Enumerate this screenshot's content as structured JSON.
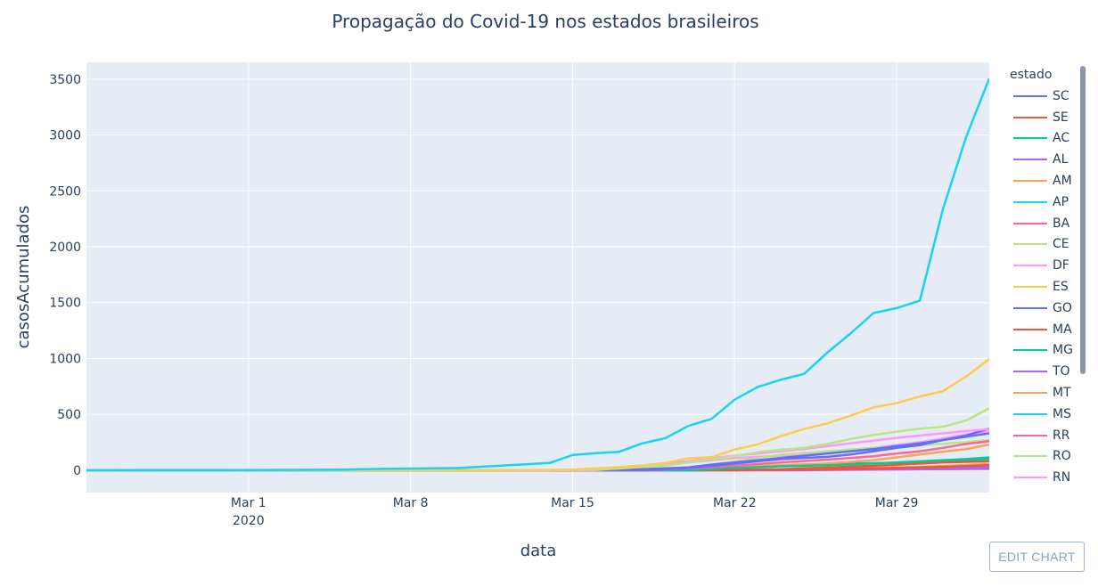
{
  "title": "Propagação do Covid-19 nos estados brasileiros",
  "legend": {
    "title": "estado",
    "items": [
      {
        "label": "SC",
        "color": "#636efa"
      },
      {
        "label": "SE",
        "color": "#EF553B"
      },
      {
        "label": "AC",
        "color": "#00cc96"
      },
      {
        "label": "AL",
        "color": "#ab63fa"
      },
      {
        "label": "AM",
        "color": "#FFA15A"
      },
      {
        "label": "AP",
        "color": "#19d3f3"
      },
      {
        "label": "BA",
        "color": "#FF6692"
      },
      {
        "label": "CE",
        "color": "#B6E880"
      },
      {
        "label": "DF",
        "color": "#FF97FF"
      },
      {
        "label": "ES",
        "color": "#FECB52"
      },
      {
        "label": "GO",
        "color": "#636efa"
      },
      {
        "label": "MA",
        "color": "#EF553B"
      },
      {
        "label": "MG",
        "color": "#00cc96"
      },
      {
        "label": "TO",
        "color": "#ab63fa"
      },
      {
        "label": "MT",
        "color": "#FFA15A"
      },
      {
        "label": "MS",
        "color": "#19d3f3"
      },
      {
        "label": "RR",
        "color": "#FF6692"
      },
      {
        "label": "RO",
        "color": "#B6E880"
      },
      {
        "label": "RN",
        "color": "#FF97FF"
      }
    ]
  },
  "edit_button": "EDIT CHART",
  "chart_data": {
    "type": "line",
    "title": "Propagação do Covid-19 nos estados brasileiros",
    "xlabel": "data",
    "ylabel": "casosAcumulados",
    "x_range": [
      "2020-02-23",
      "2020-04-02"
    ],
    "ylim": [
      -200,
      3650
    ],
    "x_ticks": [
      {
        "date": "2020-03-01",
        "label": "Mar 1",
        "sublabel": "2020"
      },
      {
        "date": "2020-03-08",
        "label": "Mar 8",
        "sublabel": ""
      },
      {
        "date": "2020-03-15",
        "label": "Mar 15",
        "sublabel": ""
      },
      {
        "date": "2020-03-22",
        "label": "Mar 22",
        "sublabel": ""
      },
      {
        "date": "2020-03-29",
        "label": "Mar 29",
        "sublabel": ""
      }
    ],
    "y_ticks": [
      0,
      500,
      1000,
      1500,
      2000,
      2500,
      3000,
      3500
    ],
    "grid": true,
    "legend_position": "right",
    "series": [
      {
        "name": "MS",
        "color": "#19d3f3",
        "points": [
          [
            "2020-02-23",
            0
          ],
          [
            "2020-02-26",
            1
          ],
          [
            "2020-02-29",
            2
          ],
          [
            "2020-03-03",
            3
          ],
          [
            "2020-03-05",
            6
          ],
          [
            "2020-03-07",
            13
          ],
          [
            "2020-03-10",
            19
          ],
          [
            "2020-03-12",
            42
          ],
          [
            "2020-03-14",
            65
          ],
          [
            "2020-03-15",
            136
          ],
          [
            "2020-03-16",
            152
          ],
          [
            "2020-03-17",
            164
          ],
          [
            "2020-03-18",
            240
          ],
          [
            "2020-03-19",
            286
          ],
          [
            "2020-03-20",
            396
          ],
          [
            "2020-03-21",
            459
          ],
          [
            "2020-03-22",
            631
          ],
          [
            "2020-03-23",
            745
          ],
          [
            "2020-03-24",
            810
          ],
          [
            "2020-03-25",
            862
          ],
          [
            "2020-03-26",
            1052
          ],
          [
            "2020-03-27",
            1223
          ],
          [
            "2020-03-28",
            1406
          ],
          [
            "2020-03-29",
            1451
          ],
          [
            "2020-03-30",
            1517
          ],
          [
            "2020-03-31",
            2339
          ],
          [
            "2020-04-01",
            2981
          ],
          [
            "2020-04-02",
            3506
          ]
        ]
      },
      {
        "name": "ES",
        "color": "#FECB52",
        "points": [
          [
            "2020-02-23",
            0
          ],
          [
            "2020-03-12",
            0
          ],
          [
            "2020-03-15",
            5
          ],
          [
            "2020-03-16",
            18
          ],
          [
            "2020-03-17",
            28
          ],
          [
            "2020-03-18",
            43
          ],
          [
            "2020-03-19",
            65
          ],
          [
            "2020-03-20",
            108
          ],
          [
            "2020-03-21",
            117
          ],
          [
            "2020-03-22",
            186
          ],
          [
            "2020-03-23",
            232
          ],
          [
            "2020-03-24",
            305
          ],
          [
            "2020-03-25",
            368
          ],
          [
            "2020-03-26",
            419
          ],
          [
            "2020-03-27",
            488
          ],
          [
            "2020-03-28",
            562
          ],
          [
            "2020-03-29",
            600
          ],
          [
            "2020-03-30",
            660
          ],
          [
            "2020-03-31",
            708
          ],
          [
            "2020-04-01",
            839
          ],
          [
            "2020-04-02",
            996
          ]
        ]
      },
      {
        "name": "RO",
        "color": "#B6E880",
        "points": [
          [
            "2020-02-23",
            0
          ],
          [
            "2020-03-14",
            0
          ],
          [
            "2020-03-16",
            5
          ],
          [
            "2020-03-17",
            15
          ],
          [
            "2020-03-18",
            30
          ],
          [
            "2020-03-19",
            40
          ],
          [
            "2020-03-20",
            70
          ],
          [
            "2020-03-21",
            100
          ],
          [
            "2020-03-22",
            125
          ],
          [
            "2020-03-23",
            160
          ],
          [
            "2020-03-24",
            185
          ],
          [
            "2020-03-25",
            200
          ],
          [
            "2020-03-26",
            235
          ],
          [
            "2020-03-27",
            280
          ],
          [
            "2020-03-28",
            315
          ],
          [
            "2020-03-29",
            345
          ],
          [
            "2020-03-30",
            372
          ],
          [
            "2020-03-31",
            390
          ],
          [
            "2020-04-01",
            445
          ],
          [
            "2020-04-02",
            555
          ]
        ]
      },
      {
        "name": "RN",
        "color": "#FF97FF",
        "points": [
          [
            "2020-02-23",
            0
          ],
          [
            "2020-03-16",
            0
          ],
          [
            "2020-03-17",
            20
          ],
          [
            "2020-03-18",
            40
          ],
          [
            "2020-03-19",
            60
          ],
          [
            "2020-03-20",
            80
          ],
          [
            "2020-03-21",
            110
          ],
          [
            "2020-03-22",
            130
          ],
          [
            "2020-03-23",
            150
          ],
          [
            "2020-03-24",
            170
          ],
          [
            "2020-03-25",
            190
          ],
          [
            "2020-03-26",
            215
          ],
          [
            "2020-03-27",
            240
          ],
          [
            "2020-03-28",
            265
          ],
          [
            "2020-03-29",
            290
          ],
          [
            "2020-03-30",
            310
          ],
          [
            "2020-03-31",
            330
          ],
          [
            "2020-04-01",
            350
          ],
          [
            "2020-04-02",
            370
          ]
        ]
      },
      {
        "name": "SC",
        "color": "#636efa",
        "points": [
          [
            "2020-02-23",
            0
          ],
          [
            "2020-03-17",
            0
          ],
          [
            "2020-03-18",
            10
          ],
          [
            "2020-03-20",
            25
          ],
          [
            "2020-03-21",
            50
          ],
          [
            "2020-03-22",
            70
          ],
          [
            "2020-03-23",
            90
          ],
          [
            "2020-03-24",
            110
          ],
          [
            "2020-03-25",
            130
          ],
          [
            "2020-03-26",
            150
          ],
          [
            "2020-03-27",
            170
          ],
          [
            "2020-03-28",
            190
          ],
          [
            "2020-03-29",
            215
          ],
          [
            "2020-03-30",
            240
          ],
          [
            "2020-03-31",
            270
          ],
          [
            "2020-04-01",
            300
          ],
          [
            "2020-04-02",
            330
          ]
        ]
      },
      {
        "name": "GO",
        "color": "#636efa",
        "points": [
          [
            "2020-02-23",
            0
          ],
          [
            "2020-03-18",
            0
          ],
          [
            "2020-03-20",
            20
          ],
          [
            "2020-03-22",
            60
          ],
          [
            "2020-03-24",
            100
          ],
          [
            "2020-03-26",
            120
          ],
          [
            "2020-03-27",
            140
          ],
          [
            "2020-03-28",
            170
          ],
          [
            "2020-03-29",
            200
          ],
          [
            "2020-03-30",
            225
          ],
          [
            "2020-03-31",
            270
          ],
          [
            "2020-04-01",
            310
          ],
          [
            "2020-04-02",
            375
          ]
        ]
      },
      {
        "name": "BA",
        "color": "#FF6692",
        "points": [
          [
            "2020-02-23",
            0
          ],
          [
            "2020-03-18",
            0
          ],
          [
            "2020-03-20",
            15
          ],
          [
            "2020-03-22",
            40
          ],
          [
            "2020-03-24",
            70
          ],
          [
            "2020-03-26",
            95
          ],
          [
            "2020-03-28",
            125
          ],
          [
            "2020-03-29",
            150
          ],
          [
            "2020-03-30",
            170
          ],
          [
            "2020-03-31",
            200
          ],
          [
            "2020-04-01",
            235
          ],
          [
            "2020-04-02",
            260
          ]
        ]
      },
      {
        "name": "AC",
        "color": "#00cc96",
        "points": [
          [
            "2020-02-23",
            0
          ],
          [
            "2020-03-20",
            0
          ],
          [
            "2020-03-22",
            20
          ],
          [
            "2020-03-24",
            35
          ],
          [
            "2020-03-26",
            45
          ],
          [
            "2020-03-28",
            60
          ],
          [
            "2020-03-29",
            70
          ],
          [
            "2020-03-30",
            80
          ],
          [
            "2020-03-31",
            90
          ],
          [
            "2020-04-01",
            100
          ],
          [
            "2020-04-02",
            115
          ]
        ]
      },
      {
        "name": "SE",
        "color": "#EF553B",
        "points": [
          [
            "2020-02-23",
            0
          ],
          [
            "2020-03-22",
            0
          ],
          [
            "2020-03-26",
            10
          ],
          [
            "2020-03-29",
            20
          ],
          [
            "2020-03-31",
            30
          ],
          [
            "2020-04-02",
            45
          ]
        ]
      },
      {
        "name": "AL",
        "color": "#ab63fa",
        "points": [
          [
            "2020-02-23",
            0
          ],
          [
            "2020-03-22",
            0
          ],
          [
            "2020-03-26",
            8
          ],
          [
            "2020-03-29",
            15
          ],
          [
            "2020-04-02",
            25
          ]
        ]
      },
      {
        "name": "AM",
        "color": "#FFA15A",
        "points": [
          [
            "2020-02-23",
            0
          ],
          [
            "2020-03-18",
            0
          ],
          [
            "2020-03-22",
            30
          ],
          [
            "2020-03-26",
            60
          ],
          [
            "2020-03-28",
            90
          ],
          [
            "2020-03-30",
            140
          ],
          [
            "2020-04-01",
            190
          ],
          [
            "2020-04-02",
            230
          ]
        ]
      },
      {
        "name": "CE",
        "color": "#B6E880",
        "points": [
          [
            "2020-02-23",
            0
          ],
          [
            "2020-03-18",
            0
          ],
          [
            "2020-03-20",
            20
          ],
          [
            "2020-03-22",
            80
          ],
          [
            "2020-03-24",
            140
          ],
          [
            "2020-03-26",
            170
          ],
          [
            "2020-03-28",
            200
          ],
          [
            "2020-03-30",
            225
          ],
          [
            "2020-04-01",
            250
          ],
          [
            "2020-04-02",
            270
          ]
        ]
      },
      {
        "name": "DF",
        "color": "#FF97FF",
        "points": [
          [
            "2020-02-23",
            0
          ],
          [
            "2020-03-16",
            0
          ],
          [
            "2020-03-18",
            30
          ],
          [
            "2020-03-20",
            70
          ],
          [
            "2020-03-22",
            110
          ],
          [
            "2020-03-24",
            130
          ],
          [
            "2020-03-26",
            160
          ],
          [
            "2020-03-28",
            200
          ],
          [
            "2020-03-30",
            250
          ],
          [
            "2020-04-01",
            320
          ],
          [
            "2020-04-02",
            350
          ]
        ]
      },
      {
        "name": "MA",
        "color": "#EF553B",
        "points": [
          [
            "2020-02-23",
            0
          ],
          [
            "2020-03-20",
            0
          ],
          [
            "2020-03-24",
            10
          ],
          [
            "2020-03-28",
            40
          ],
          [
            "2020-03-31",
            70
          ],
          [
            "2020-04-02",
            80
          ]
        ]
      },
      {
        "name": "MG",
        "color": "#00cc96",
        "points": [
          [
            "2020-02-23",
            0
          ],
          [
            "2020-03-18",
            0
          ],
          [
            "2020-03-21",
            20
          ],
          [
            "2020-03-24",
            40
          ],
          [
            "2020-03-27",
            60
          ],
          [
            "2020-03-30",
            70
          ],
          [
            "2020-04-02",
            100
          ]
        ]
      },
      {
        "name": "TO",
        "color": "#ab63fa",
        "points": [
          [
            "2020-02-23",
            0
          ],
          [
            "2020-03-24",
            0
          ],
          [
            "2020-03-28",
            5
          ],
          [
            "2020-04-02",
            12
          ]
        ]
      },
      {
        "name": "MT",
        "color": "#FFA15A",
        "points": [
          [
            "2020-02-23",
            0
          ],
          [
            "2020-03-22",
            0
          ],
          [
            "2020-03-26",
            15
          ],
          [
            "2020-03-30",
            30
          ],
          [
            "2020-04-02",
            55
          ]
        ]
      },
      {
        "name": "RR",
        "color": "#FF6692",
        "points": [
          [
            "2020-02-23",
            0
          ],
          [
            "2020-03-22",
            0
          ],
          [
            "2020-03-26",
            5
          ],
          [
            "2020-03-30",
            12
          ],
          [
            "2020-04-02",
            20
          ]
        ]
      },
      {
        "name": "AP",
        "color": "#19d3f3",
        "points": [
          [
            "2020-02-23",
            0
          ],
          [
            "2020-03-20",
            0
          ],
          [
            "2020-03-24",
            3
          ],
          [
            "2020-03-29",
            8
          ],
          [
            "2020-04-02",
            15
          ]
        ]
      }
    ]
  }
}
